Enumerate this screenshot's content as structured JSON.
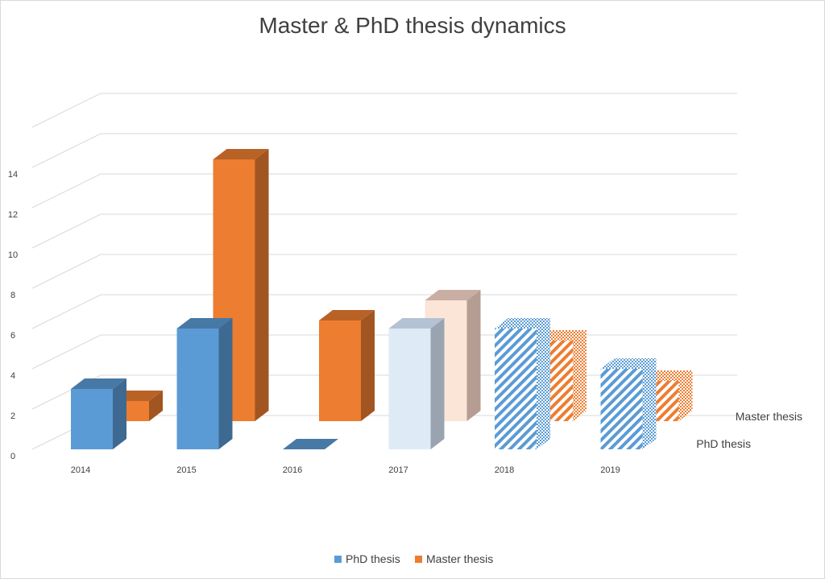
{
  "chart_data": {
    "type": "bar",
    "title": "Master & PhD thesis dynamics",
    "categories": [
      "2014",
      "2015",
      "2016",
      "2017",
      "2018",
      "2019"
    ],
    "series": [
      {
        "name": "PhD thesis",
        "values": [
          3,
          6,
          0,
          6,
          6,
          4
        ],
        "color": "#5b9bd5"
      },
      {
        "name": "Master thesis",
        "values": [
          1,
          13,
          5,
          6,
          4,
          2
        ],
        "color": "#ed7d31"
      }
    ],
    "ylim": [
      0,
      14
    ],
    "yticks": [
      "0",
      "2",
      "4",
      "6",
      "8",
      "10",
      "12",
      "14"
    ],
    "depth_labels": [
      "Master thesis",
      "PhD thesis"
    ],
    "legend_position": "bottom",
    "grid": true,
    "styles": {
      "2017": "light-fill",
      "2018": "striped",
      "2019": "striped"
    }
  }
}
